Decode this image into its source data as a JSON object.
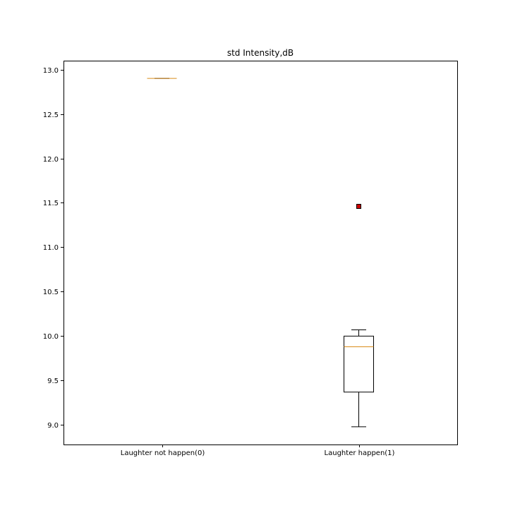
{
  "chart_data": {
    "type": "boxplot",
    "title": "std Intensity,dB",
    "xlabel": "",
    "ylabel": "",
    "ylim": [
      8.78,
      13.1
    ],
    "yticks": [
      9.0,
      9.5,
      10.0,
      10.5,
      11.0,
      11.5,
      12.0,
      12.5,
      13.0
    ],
    "ytick_labels": [
      "9.0",
      "9.5",
      "10.0",
      "10.5",
      "11.0",
      "11.5",
      "12.0",
      "12.5",
      "13.0"
    ],
    "categories": [
      "Laughter not happen(0)",
      "Laughter happen(1)"
    ],
    "boxes": [
      {
        "category": "Laughter not happen(0)",
        "whisker_low": 12.9,
        "q1": 12.9,
        "median": 12.9,
        "q3": 12.9,
        "whisker_high": 12.9,
        "outliers": []
      },
      {
        "category": "Laughter happen(1)",
        "whisker_low": 8.98,
        "q1": 9.37,
        "median": 9.88,
        "q3": 10.0,
        "whisker_high": 10.07,
        "outliers": [
          11.46
        ]
      }
    ],
    "colors": {
      "box": "#000000",
      "median": "#d98c1a",
      "outlier_fill": "#cc0000",
      "outlier_edge": "#000000",
      "axes": "#000000",
      "background": "#ffffff"
    },
    "grid": false,
    "legend": "none"
  }
}
